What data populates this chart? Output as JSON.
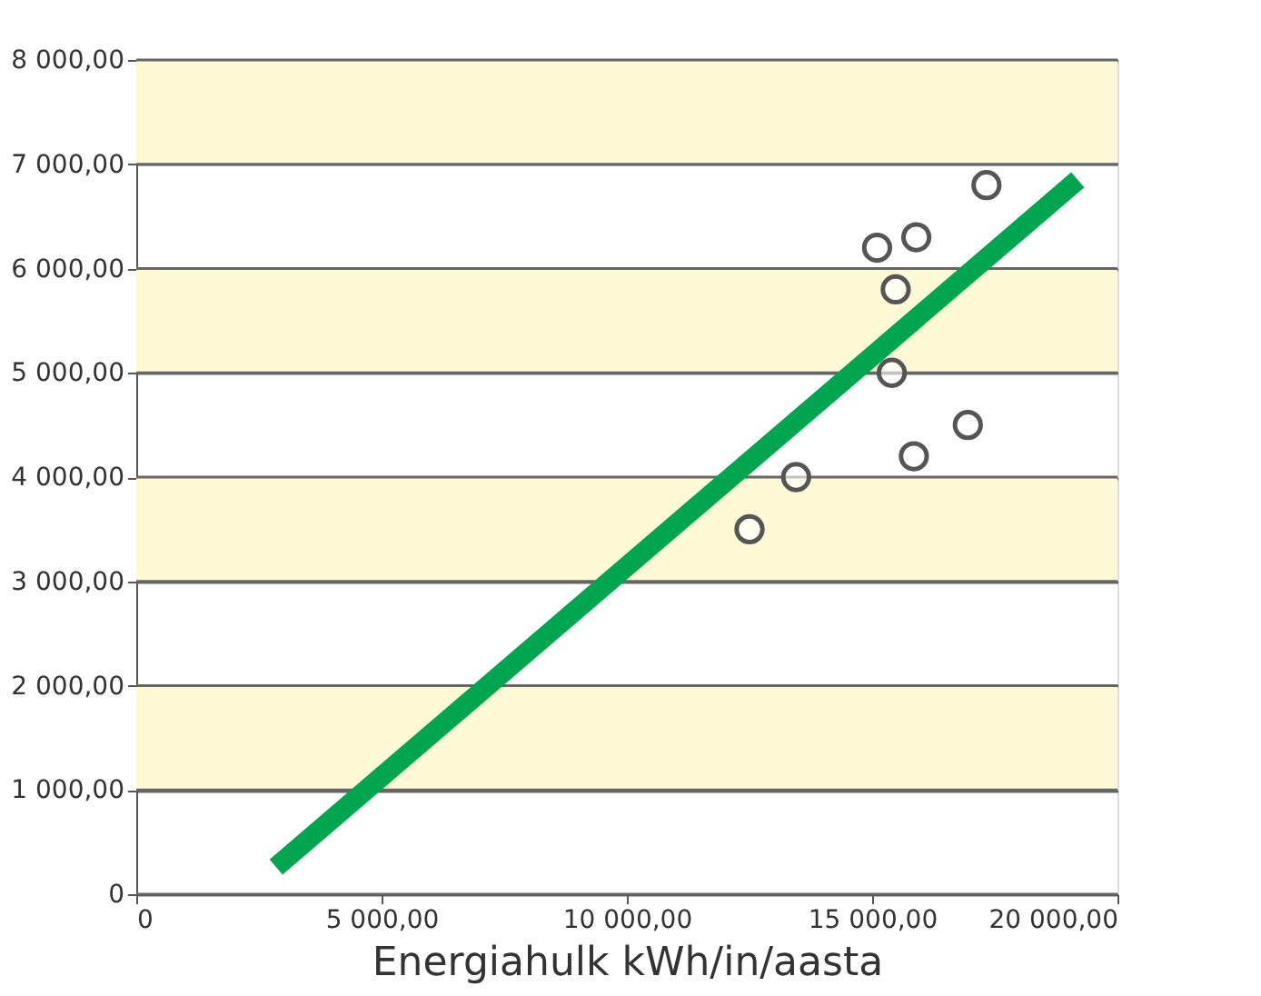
{
  "chart_data": {
    "type": "scatter",
    "xlabel": "Energiahulk kWh/in/aasta",
    "series": [
      {
        "color": "#555555",
        "marker": "circle",
        "x": [
          12500,
          13450,
          15100,
          15900,
          15480,
          15400,
          15850,
          16950,
          17330
        ],
        "values": [
          3500,
          4000,
          6200,
          6300,
          5800,
          5000,
          4200,
          4500,
          6800
        ]
      },
      {
        "type": "line",
        "color": "#00a550",
        "marker": "none",
        "line_style": "solid",
        "x": [
          2850,
          19190
        ],
        "values": [
          260,
          6850
        ]
      }
    ],
    "xlim": [
      0,
      20000
    ],
    "ylim": [
      0,
      8000
    ],
    "xticks": [
      {
        "value": 0,
        "label": "0"
      },
      {
        "value": 5000,
        "label": "5 000,00"
      },
      {
        "value": 10000,
        "label": "10 000,00"
      },
      {
        "value": 15000,
        "label": "15 000,00"
      },
      {
        "value": 20000,
        "label": "20 000,00"
      }
    ],
    "yticks": [
      {
        "value": 0,
        "label": "0"
      },
      {
        "value": 1000,
        "label": "1 000,00"
      },
      {
        "value": 2000,
        "label": "2 000,00"
      },
      {
        "value": 3000,
        "label": "3 000,00"
      },
      {
        "value": 4000,
        "label": "4 000,00"
      },
      {
        "value": 5000,
        "label": "5 000,00"
      },
      {
        "value": 6000,
        "label": "6 000,00"
      },
      {
        "value": 7000,
        "label": "7 000,00"
      },
      {
        "value": 8000,
        "label": "8 000,00"
      }
    ],
    "bands": [
      {
        "axis": "y",
        "from": 1000,
        "to": 2000,
        "color": "#fff9d6"
      },
      {
        "axis": "y",
        "from": 3000,
        "to": 4000,
        "color": "#fff9d6"
      },
      {
        "axis": "y",
        "from": 5000,
        "to": 6000,
        "color": "#fff9d6"
      },
      {
        "axis": "y",
        "from": 7000,
        "to": 8000,
        "color": "#fff9d6"
      }
    ],
    "grid": "y",
    "legend": false
  }
}
